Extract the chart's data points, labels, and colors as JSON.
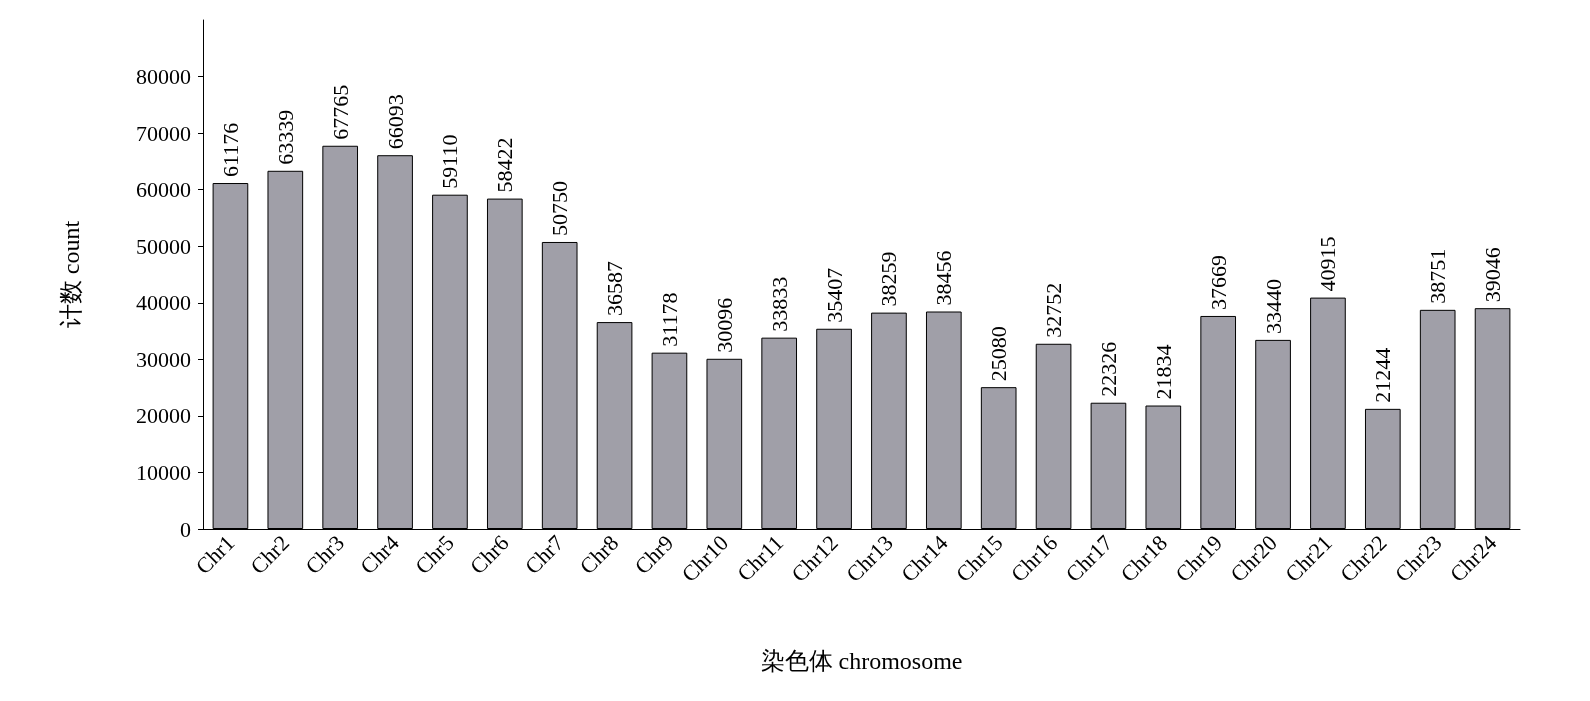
{
  "chart_data": {
    "type": "bar",
    "xlabel": "染色体 chromosome",
    "ylabel": "计数 count",
    "categories": [
      "Chr1",
      "Chr2",
      "Chr3",
      "Chr4",
      "Chr5",
      "Chr6",
      "Chr7",
      "Chr8",
      "Chr9",
      "Chr10",
      "Chr11",
      "Chr12",
      "Chr13",
      "Chr14",
      "Chr15",
      "Chr16",
      "Chr17",
      "Chr18",
      "Chr19",
      "Chr20",
      "Chr21",
      "Chr22",
      "Chr23",
      "Chr24"
    ],
    "values": [
      61176,
      63339,
      67765,
      66093,
      59110,
      58422,
      50750,
      36587,
      31178,
      30096,
      33833,
      35407,
      38259,
      38456,
      25080,
      32752,
      22326,
      21834,
      37669,
      33440,
      40915,
      21244,
      38751,
      39046
    ],
    "color": "#a09fa8",
    "ylim": [
      0,
      90000
    ],
    "yticks": [
      0,
      10000,
      20000,
      30000,
      40000,
      50000,
      60000,
      70000,
      80000
    ],
    "data_labels": true,
    "grid": false
  }
}
